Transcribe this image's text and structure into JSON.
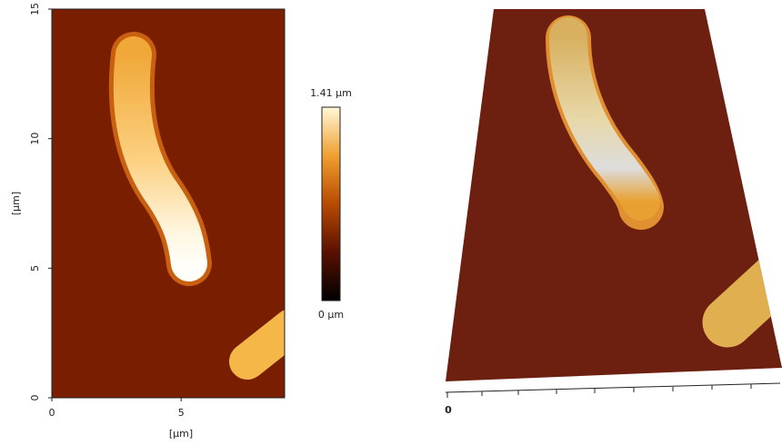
{
  "chart_data": [
    {
      "type": "image",
      "xlabel": "[μm]",
      "ylabel": "[μm]",
      "xlim": [
        0,
        9
      ],
      "ylim": [
        0,
        15
      ],
      "xticks": [
        0,
        5
      ],
      "yticks": [
        0,
        5,
        10,
        15
      ],
      "colorbar": {
        "clim": [
          0,
          1.41
        ],
        "colors": [
          "#000000",
          "#5a1000",
          "#b84a00",
          "#f0a030",
          "#fff8d8"
        ],
        "ticks": [
          {
            "value": 1.41,
            "label": "1.41 μm"
          },
          {
            "value": 0,
            "label": "0 μm"
          }
        ]
      }
    },
    {
      "type": "surface",
      "xticks": [
        0
      ]
    }
  ]
}
